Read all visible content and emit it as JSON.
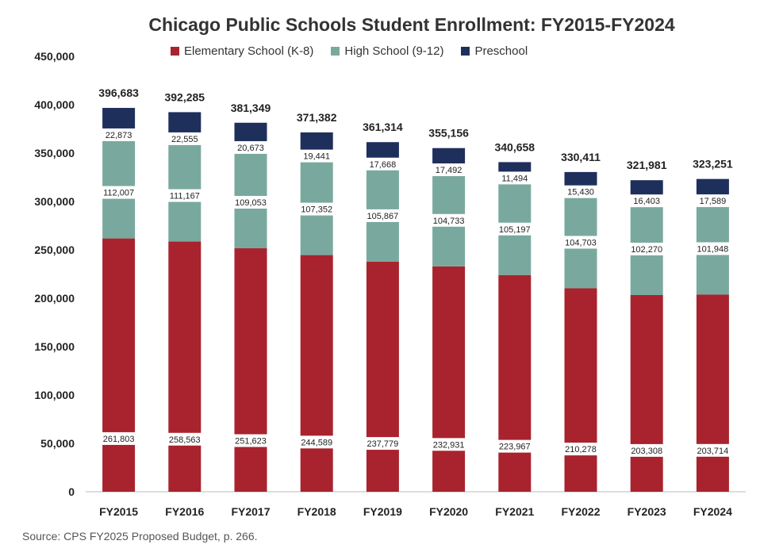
{
  "title": "Chicago Public Schools Student Enrollment: FY2015-FY2024",
  "source": "Source: CPS FY2025 Proposed Budget, p. 266.",
  "colors": {
    "elementary": "#a8232e",
    "high_school": "#79a99e",
    "preschool": "#1f2f5c"
  },
  "chart_data": {
    "type": "bar",
    "stacked": true,
    "title": "Chicago Public Schools Student Enrollment: FY2015-FY2024",
    "categories": [
      "FY2015",
      "FY2016",
      "FY2017",
      "FY2018",
      "FY2019",
      "FY2020",
      "FY2021",
      "FY2022",
      "FY2023",
      "FY2024"
    ],
    "series": [
      {
        "name": "Elementary School (K-8)",
        "key": "elementary",
        "values": [
          261803,
          258563,
          251623,
          244589,
          237779,
          232931,
          223967,
          210278,
          203308,
          203714
        ]
      },
      {
        "name": "High School (9-12)",
        "key": "high_school",
        "values": [
          112007,
          111167,
          109053,
          107352,
          105867,
          104733,
          105197,
          104703,
          102270,
          101948
        ]
      },
      {
        "name": "Preschool",
        "key": "preschool",
        "values": [
          22873,
          22555,
          20673,
          19441,
          17668,
          17492,
          11494,
          15430,
          16403,
          17589
        ]
      }
    ],
    "totals": [
      396683,
      392285,
      381349,
      371382,
      361314,
      355156,
      340658,
      330411,
      321981,
      323251
    ],
    "value_labels": {
      "elementary": [
        "261,803",
        "258,563",
        "251,623",
        "244,589",
        "237,779",
        "232,931",
        "223,967",
        "210,278",
        "203,308",
        "203,714"
      ],
      "high_school": [
        "112,007",
        "111,167",
        "109,053",
        "107,352",
        "105,867",
        "104,733",
        "105,197",
        "104,703",
        "102,270",
        "101,948"
      ],
      "preschool": [
        "22,873",
        "22,555",
        "20,673",
        "19,441",
        "17,668",
        "17,492",
        "11,494",
        "15,430",
        "16,403",
        "17,589"
      ],
      "totals": [
        "396,683",
        "392,285",
        "381,349",
        "371,382",
        "361,314",
        "355,156",
        "340,658",
        "330,411",
        "321,981",
        "323,251"
      ]
    },
    "ylim": [
      0,
      450000
    ],
    "yticks": [
      "0",
      "50,000",
      "100,000",
      "150,000",
      "200,000",
      "250,000",
      "300,000",
      "350,000",
      "400,000",
      "450,000"
    ],
    "ytick_values": [
      0,
      50000,
      100000,
      150000,
      200000,
      250000,
      300000,
      350000,
      400000,
      450000
    ],
    "legend_position": "top",
    "grid": false
  }
}
